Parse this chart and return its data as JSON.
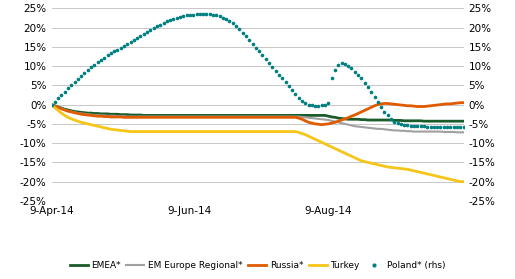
{
  "ylim": [
    -0.25,
    0.25
  ],
  "yticks": [
    -0.25,
    -0.2,
    -0.15,
    -0.1,
    -0.05,
    0.0,
    0.05,
    0.1,
    0.15,
    0.2,
    0.25
  ],
  "xtick_labels": [
    "9-Apr-14",
    "9-Jun-14",
    "9-Aug-14"
  ],
  "xtick_positions": [
    0,
    42,
    84
  ],
  "n_points": 126,
  "series": {
    "EMEA": {
      "color": "#1a5c2a",
      "linewidth": 2.0,
      "linestyle": "solid",
      "data": [
        0.0,
        -0.003,
        -0.006,
        -0.009,
        -0.012,
        -0.014,
        -0.016,
        -0.018,
        -0.019,
        -0.02,
        -0.021,
        -0.022,
        -0.022,
        -0.023,
        -0.023,
        -0.024,
        -0.024,
        -0.024,
        -0.025,
        -0.025,
        -0.025,
        -0.026,
        -0.026,
        -0.026,
        -0.027,
        -0.027,
        -0.027,
        -0.027,
        -0.028,
        -0.028,
        -0.028,
        -0.028,
        -0.028,
        -0.028,
        -0.028,
        -0.028,
        -0.028,
        -0.028,
        -0.028,
        -0.028,
        -0.028,
        -0.028,
        -0.028,
        -0.028,
        -0.028,
        -0.028,
        -0.028,
        -0.028,
        -0.028,
        -0.028,
        -0.028,
        -0.028,
        -0.028,
        -0.028,
        -0.028,
        -0.028,
        -0.028,
        -0.028,
        -0.028,
        -0.028,
        -0.028,
        -0.028,
        -0.028,
        -0.028,
        -0.028,
        -0.028,
        -0.028,
        -0.028,
        -0.028,
        -0.028,
        -0.028,
        -0.028,
        -0.028,
        -0.028,
        -0.028,
        -0.028,
        -0.028,
        -0.028,
        -0.028,
        -0.028,
        -0.028,
        -0.028,
        -0.028,
        -0.028,
        -0.03,
        -0.032,
        -0.033,
        -0.035,
        -0.036,
        -0.037,
        -0.038,
        -0.038,
        -0.038,
        -0.038,
        -0.039,
        -0.039,
        -0.04,
        -0.04,
        -0.04,
        -0.04,
        -0.04,
        -0.04,
        -0.04,
        -0.04,
        -0.041,
        -0.041,
        -0.041,
        -0.042,
        -0.042,
        -0.042,
        -0.042,
        -0.042,
        -0.042,
        -0.043,
        -0.043,
        -0.043,
        -0.043,
        -0.043,
        -0.043,
        -0.043,
        -0.043,
        -0.043,
        -0.043,
        -0.043,
        -0.043,
        -0.043
      ]
    },
    "EM_Europe_Regional": {
      "color": "#a0a0a0",
      "linewidth": 1.5,
      "linestyle": "solid",
      "data": [
        0.0,
        -0.003,
        -0.006,
        -0.01,
        -0.013,
        -0.016,
        -0.018,
        -0.02,
        -0.022,
        -0.023,
        -0.024,
        -0.025,
        -0.026,
        -0.027,
        -0.027,
        -0.028,
        -0.028,
        -0.029,
        -0.029,
        -0.029,
        -0.03,
        -0.03,
        -0.03,
        -0.031,
        -0.031,
        -0.031,
        -0.031,
        -0.031,
        -0.031,
        -0.031,
        -0.031,
        -0.031,
        -0.031,
        -0.031,
        -0.031,
        -0.031,
        -0.031,
        -0.031,
        -0.031,
        -0.031,
        -0.031,
        -0.031,
        -0.031,
        -0.031,
        -0.031,
        -0.031,
        -0.031,
        -0.031,
        -0.031,
        -0.031,
        -0.031,
        -0.031,
        -0.031,
        -0.031,
        -0.031,
        -0.031,
        -0.031,
        -0.031,
        -0.031,
        -0.031,
        -0.031,
        -0.031,
        -0.031,
        -0.031,
        -0.031,
        -0.031,
        -0.031,
        -0.031,
        -0.031,
        -0.031,
        -0.031,
        -0.031,
        -0.031,
        -0.031,
        -0.031,
        -0.031,
        -0.032,
        -0.033,
        -0.034,
        -0.035,
        -0.036,
        -0.037,
        -0.038,
        -0.039,
        -0.04,
        -0.042,
        -0.044,
        -0.046,
        -0.048,
        -0.05,
        -0.052,
        -0.054,
        -0.056,
        -0.057,
        -0.058,
        -0.059,
        -0.06,
        -0.061,
        -0.062,
        -0.063,
        -0.063,
        -0.064,
        -0.065,
        -0.066,
        -0.067,
        -0.067,
        -0.068,
        -0.068,
        -0.069,
        -0.069,
        -0.07,
        -0.07,
        -0.07,
        -0.07,
        -0.07,
        -0.07,
        -0.07,
        -0.07,
        -0.07,
        -0.071,
        -0.071,
        -0.071,
        -0.071,
        -0.072,
        -0.072,
        -0.072
      ]
    },
    "Russia": {
      "color": "#e05a00",
      "linewidth": 2.0,
      "linestyle": "solid",
      "data": [
        0.0,
        -0.004,
        -0.007,
        -0.011,
        -0.014,
        -0.017,
        -0.019,
        -0.021,
        -0.023,
        -0.025,
        -0.026,
        -0.027,
        -0.028,
        -0.029,
        -0.03,
        -0.03,
        -0.031,
        -0.031,
        -0.032,
        -0.032,
        -0.032,
        -0.032,
        -0.033,
        -0.033,
        -0.033,
        -0.033,
        -0.033,
        -0.033,
        -0.033,
        -0.033,
        -0.033,
        -0.033,
        -0.033,
        -0.033,
        -0.033,
        -0.033,
        -0.033,
        -0.033,
        -0.033,
        -0.033,
        -0.033,
        -0.033,
        -0.033,
        -0.033,
        -0.033,
        -0.033,
        -0.033,
        -0.033,
        -0.033,
        -0.033,
        -0.033,
        -0.033,
        -0.033,
        -0.033,
        -0.033,
        -0.033,
        -0.033,
        -0.033,
        -0.033,
        -0.033,
        -0.033,
        -0.033,
        -0.033,
        -0.033,
        -0.033,
        -0.033,
        -0.033,
        -0.033,
        -0.033,
        -0.033,
        -0.033,
        -0.033,
        -0.033,
        -0.033,
        -0.033,
        -0.035,
        -0.038,
        -0.042,
        -0.046,
        -0.048,
        -0.05,
        -0.051,
        -0.052,
        -0.051,
        -0.05,
        -0.048,
        -0.046,
        -0.043,
        -0.04,
        -0.037,
        -0.034,
        -0.03,
        -0.027,
        -0.023,
        -0.019,
        -0.015,
        -0.011,
        -0.007,
        -0.003,
        0.0,
        0.002,
        0.003,
        0.003,
        0.002,
        0.001,
        0.0,
        -0.001,
        -0.002,
        -0.003,
        -0.003,
        -0.004,
        -0.005,
        -0.005,
        -0.005,
        -0.004,
        -0.003,
        -0.002,
        -0.001,
        0.0,
        0.001,
        0.002,
        0.002,
        0.003,
        0.004,
        0.005,
        0.005
      ]
    },
    "Turkey": {
      "color": "#f5c518",
      "linewidth": 2.0,
      "linestyle": "solid",
      "data": [
        0.0,
        -0.008,
        -0.015,
        -0.022,
        -0.028,
        -0.033,
        -0.037,
        -0.04,
        -0.043,
        -0.046,
        -0.048,
        -0.05,
        -0.052,
        -0.054,
        -0.056,
        -0.058,
        -0.06,
        -0.062,
        -0.064,
        -0.065,
        -0.066,
        -0.067,
        -0.068,
        -0.069,
        -0.07,
        -0.07,
        -0.07,
        -0.07,
        -0.07,
        -0.07,
        -0.07,
        -0.07,
        -0.07,
        -0.07,
        -0.07,
        -0.07,
        -0.07,
        -0.07,
        -0.07,
        -0.07,
        -0.07,
        -0.07,
        -0.07,
        -0.07,
        -0.07,
        -0.07,
        -0.07,
        -0.07,
        -0.07,
        -0.07,
        -0.07,
        -0.07,
        -0.07,
        -0.07,
        -0.07,
        -0.07,
        -0.07,
        -0.07,
        -0.07,
        -0.07,
        -0.07,
        -0.07,
        -0.07,
        -0.07,
        -0.07,
        -0.07,
        -0.07,
        -0.07,
        -0.07,
        -0.07,
        -0.07,
        -0.07,
        -0.07,
        -0.07,
        -0.07,
        -0.072,
        -0.075,
        -0.078,
        -0.082,
        -0.086,
        -0.09,
        -0.094,
        -0.098,
        -0.102,
        -0.106,
        -0.11,
        -0.114,
        -0.118,
        -0.122,
        -0.126,
        -0.13,
        -0.134,
        -0.138,
        -0.142,
        -0.146,
        -0.148,
        -0.15,
        -0.152,
        -0.154,
        -0.156,
        -0.158,
        -0.16,
        -0.162,
        -0.163,
        -0.164,
        -0.165,
        -0.166,
        -0.167,
        -0.168,
        -0.17,
        -0.172,
        -0.174,
        -0.176,
        -0.178,
        -0.18,
        -0.182,
        -0.184,
        -0.186,
        -0.188,
        -0.19,
        -0.192,
        -0.194,
        -0.196,
        -0.198,
        -0.2,
        -0.2
      ]
    },
    "Poland": {
      "color": "#008080",
      "linewidth": 1.8,
      "linestyle": "dotted",
      "data": [
        0.0,
        0.008,
        0.016,
        0.025,
        0.033,
        0.042,
        0.05,
        0.058,
        0.066,
        0.074,
        0.082,
        0.09,
        0.098,
        0.104,
        0.11,
        0.116,
        0.122,
        0.128,
        0.133,
        0.138,
        0.143,
        0.148,
        0.153,
        0.158,
        0.163,
        0.168,
        0.173,
        0.178,
        0.183,
        0.188,
        0.193,
        0.198,
        0.203,
        0.208,
        0.212,
        0.216,
        0.22,
        0.223,
        0.226,
        0.228,
        0.23,
        0.232,
        0.233,
        0.234,
        0.235,
        0.236,
        0.236,
        0.236,
        0.235,
        0.234,
        0.232,
        0.229,
        0.226,
        0.222,
        0.217,
        0.211,
        0.204,
        0.196,
        0.187,
        0.178,
        0.168,
        0.158,
        0.148,
        0.138,
        0.128,
        0.118,
        0.108,
        0.098,
        0.088,
        0.078,
        0.068,
        0.058,
        0.048,
        0.038,
        0.028,
        0.018,
        0.01,
        0.004,
        0.0,
        -0.002,
        -0.003,
        -0.003,
        -0.002,
        0.0,
        0.003,
        0.07,
        0.09,
        0.103,
        0.108,
        0.105,
        0.1,
        0.094,
        0.086,
        0.078,
        0.068,
        0.057,
        0.045,
        0.033,
        0.02,
        0.007,
        -0.006,
        -0.018,
        -0.028,
        -0.037,
        -0.044,
        -0.048,
        -0.051,
        -0.053,
        -0.054,
        -0.055,
        -0.055,
        -0.056,
        -0.056,
        -0.056,
        -0.057,
        -0.057,
        -0.057,
        -0.057,
        -0.057,
        -0.057,
        -0.057,
        -0.057,
        -0.057,
        -0.057,
        -0.057,
        -0.057
      ]
    }
  },
  "legend": {
    "EMEA*": {
      "color": "#1a5c2a",
      "linestyle": "solid",
      "linewidth": 2.0
    },
    "EM Europe Regional*": {
      "color": "#a0a0a0",
      "linestyle": "solid",
      "linewidth": 1.5
    },
    "Russia*": {
      "color": "#e05a00",
      "linestyle": "solid",
      "linewidth": 2.0
    },
    "Turkey": {
      "color": "#f5c518",
      "linestyle": "solid",
      "linewidth": 2.0
    },
    "Poland* (rhs)": {
      "color": "#008080",
      "linestyle": "dotted",
      "linewidth": 1.8
    }
  },
  "background_color": "#ffffff",
  "grid_color": "#b0b0b0"
}
